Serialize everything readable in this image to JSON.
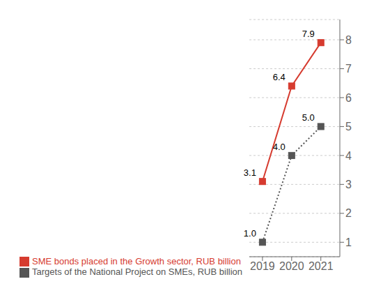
{
  "chart_data": {
    "type": "line",
    "x": [
      2019,
      2020,
      2021
    ],
    "xlim": [
      2018.55,
      2021.65
    ],
    "xticks": [
      2019,
      2020,
      2021
    ],
    "ylim": [
      0.5,
      8.7
    ],
    "yticks": [
      1,
      2,
      3,
      4,
      5,
      6,
      7,
      8
    ],
    "grid": true,
    "legend": "bottom",
    "data_labels": true,
    "series": [
      {
        "name": "SME bonds placed in the Growth sector, RUB billion",
        "color": "#d63b2f",
        "marker": "square",
        "line_style": "solid",
        "values": [
          3.1,
          6.4,
          7.9
        ]
      },
      {
        "name": "Targets of the National Project on SMEs, RUB billion",
        "color": "#555555",
        "marker": "square",
        "line_style": "dotted",
        "values": [
          1.0,
          4.0,
          5.0
        ],
        "value_labels": [
          "1.0",
          "4.0",
          "5.0"
        ]
      }
    ]
  }
}
